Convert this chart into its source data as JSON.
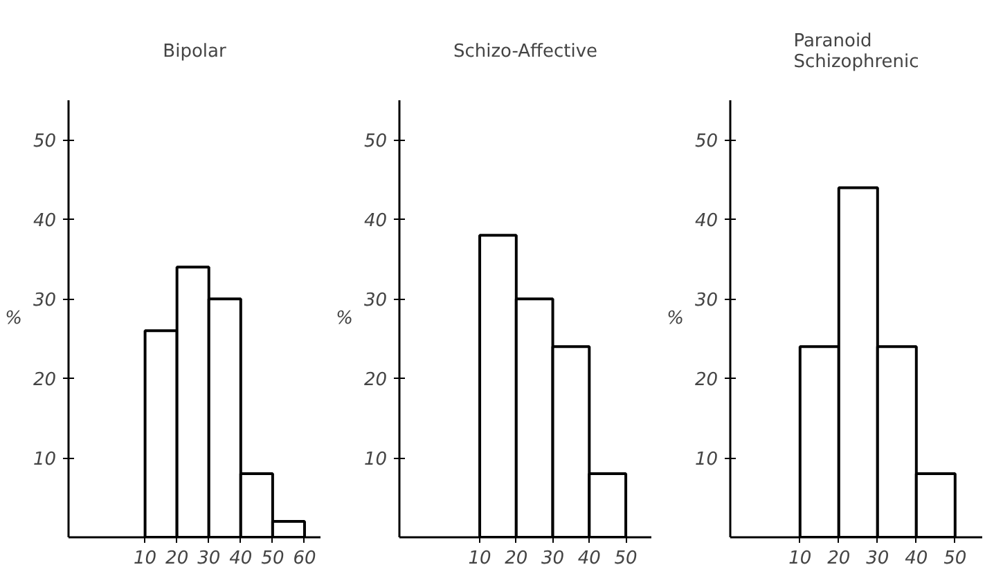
{
  "chart_data": [
    {
      "type": "histogram",
      "title": "Bipolar",
      "ylabel": "%",
      "bins": [
        10,
        20,
        30,
        40,
        50,
        60
      ],
      "values": [
        26,
        34,
        30,
        8,
        2
      ],
      "color": "#ffffff",
      "xlim": [
        -14,
        65
      ],
      "ylim": [
        0,
        55
      ],
      "xticks": [
        10,
        20,
        30,
        40,
        50,
        60
      ],
      "yticks": [
        10,
        20,
        30,
        40,
        50
      ],
      "grid": false
    },
    {
      "type": "histogram",
      "title": "Schizo-Affective",
      "ylabel": "%",
      "bins": [
        10,
        20,
        30,
        40,
        50
      ],
      "values": [
        38,
        30,
        24,
        8
      ],
      "color": "#ffffff",
      "xlim": [
        -12,
        57
      ],
      "ylim": [
        0,
        55
      ],
      "xticks": [
        10,
        20,
        30,
        40,
        50
      ],
      "yticks": [
        10,
        20,
        30,
        40,
        50
      ],
      "grid": false
    },
    {
      "type": "histogram",
      "title": "Paranoid\nSchizophrenic",
      "ylabel": "%",
      "bins": [
        10,
        20,
        30,
        40,
        50
      ],
      "values": [
        24,
        44,
        24,
        8
      ],
      "color": "#ffffff",
      "xlim": [
        -8,
        57
      ],
      "ylim": [
        0,
        55
      ],
      "xticks": [
        10,
        20,
        30,
        40,
        50
      ],
      "yticks": [
        10,
        20,
        30,
        40,
        50
      ],
      "grid": false
    }
  ]
}
